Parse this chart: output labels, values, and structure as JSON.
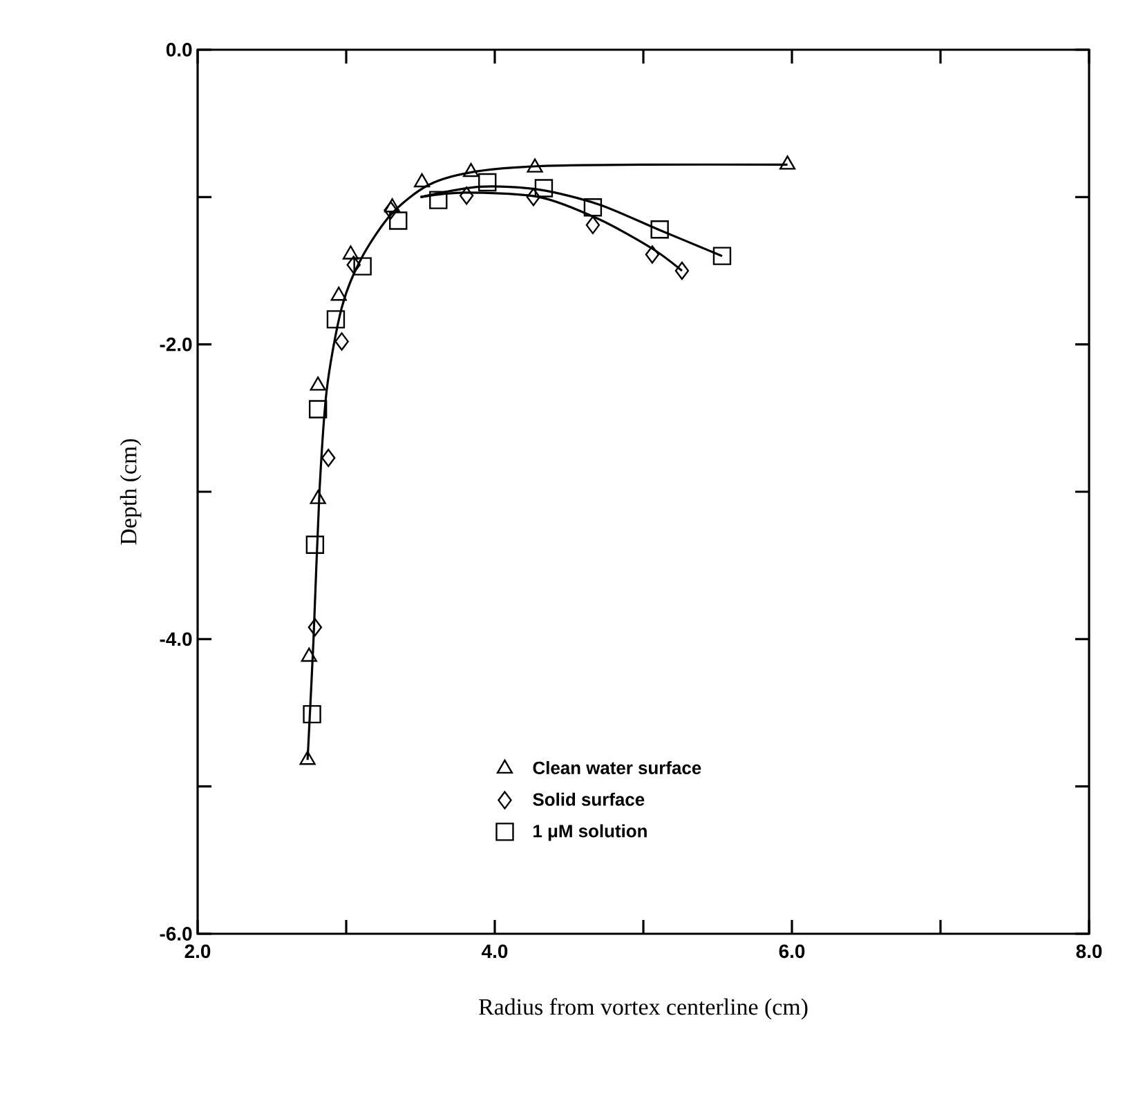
{
  "chart_data": {
    "type": "scatter",
    "xlabel": "Radius from vortex centerline (cm)",
    "ylabel": "Depth (cm)",
    "xlim": [
      2,
      8
    ],
    "ylim": [
      -6,
      0
    ],
    "xticks": [
      {
        "value": 2,
        "label": "2.0"
      },
      {
        "value": 3,
        "label": null
      },
      {
        "value": 4,
        "label": "4.0"
      },
      {
        "value": 5,
        "label": null
      },
      {
        "value": 6,
        "label": "6.0"
      },
      {
        "value": 7,
        "label": null
      },
      {
        "value": 8,
        "label": "8.0"
      }
    ],
    "yticks": [
      {
        "value": -6,
        "label": "-6.0"
      },
      {
        "value": -5,
        "label": null
      },
      {
        "value": -4,
        "label": "-4.0"
      },
      {
        "value": -3,
        "label": null
      },
      {
        "value": -2,
        "label": "-2.0"
      },
      {
        "value": -1,
        "label": null
      },
      {
        "value": 0,
        "label": "0.0"
      }
    ],
    "grid": false,
    "legend": "bottom",
    "series": [
      {
        "name": "Clean water surface",
        "color": "#000000",
        "marker": "triangle",
        "x": [
          2.74,
          2.75,
          2.81,
          2.81,
          2.95,
          3.03,
          3.31,
          3.51,
          3.84,
          4.27,
          5.97
        ],
        "values": [
          -4.82,
          -4.12,
          -3.05,
          -2.28,
          -1.67,
          -1.39,
          -1.07,
          -0.9,
          -0.83,
          -0.8,
          -0.78
        ]
      },
      {
        "name": "Solid surface",
        "color": "#000000",
        "marker": "diamond",
        "x": [
          2.79,
          2.88,
          2.97,
          3.05,
          3.3,
          3.81,
          4.26,
          4.66,
          5.06,
          5.26
        ],
        "values": [
          -3.92,
          -2.77,
          -1.98,
          -1.46,
          -1.09,
          -0.99,
          -1.0,
          -1.19,
          -1.39,
          -1.5
        ]
      },
      {
        "name": "1 μM solution",
        "color": "#000000",
        "marker": "square",
        "x": [
          2.77,
          2.79,
          2.81,
          2.93,
          3.11,
          3.35,
          3.62,
          3.95,
          4.33,
          4.66,
          5.11,
          5.53
        ],
        "values": [
          -4.51,
          -3.36,
          -2.44,
          -1.83,
          -1.47,
          -1.16,
          -1.02,
          -0.9,
          -0.94,
          -1.07,
          -1.22,
          -1.4
        ]
      },
      {
        "type": "line",
        "color": "#000000",
        "marker": "none",
        "x": [
          2.74,
          2.78,
          2.82,
          2.87,
          2.97,
          3.1,
          3.3,
          3.55,
          3.85,
          4.3,
          5.0,
          5.97
        ],
        "values": [
          -4.82,
          -4.0,
          -3.0,
          -2.3,
          -1.75,
          -1.42,
          -1.12,
          -0.92,
          -0.83,
          -0.79,
          -0.78,
          -0.78
        ]
      },
      {
        "type": "line",
        "color": "#000000",
        "marker": "none",
        "x": [
          3.5,
          3.8,
          4.3,
          4.7,
          5.06,
          5.26
        ],
        "values": [
          -1.0,
          -0.97,
          -1.0,
          -1.15,
          -1.35,
          -1.5
        ]
      },
      {
        "type": "line",
        "color": "#000000",
        "marker": "none",
        "x": [
          3.5,
          3.9,
          4.3,
          4.7,
          5.1,
          5.53
        ],
        "values": [
          -1.0,
          -0.93,
          -0.95,
          -1.05,
          -1.22,
          -1.4
        ]
      }
    ]
  }
}
